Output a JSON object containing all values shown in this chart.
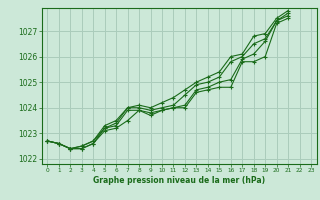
{
  "xlabel": "Graphe pression niveau de la mer (hPa)",
  "ylim": [
    1021.8,
    1027.9
  ],
  "xlim": [
    -0.5,
    23.5
  ],
  "yticks": [
    1022,
    1023,
    1024,
    1025,
    1026,
    1027
  ],
  "xticks": [
    0,
    1,
    2,
    3,
    4,
    5,
    6,
    7,
    8,
    9,
    10,
    11,
    12,
    13,
    14,
    15,
    16,
    17,
    18,
    19,
    20,
    21,
    22,
    23
  ],
  "bg_color": "#cce8d8",
  "grid_color": "#aaccbb",
  "line_color": "#1a6b1a",
  "series": [
    [
      1022.7,
      1022.6,
      1022.4,
      1022.4,
      1022.6,
      1023.1,
      1023.2,
      1023.5,
      1023.9,
      1023.7,
      1023.9,
      1024.0,
      1024.0,
      1024.6,
      1024.7,
      1024.8,
      1024.8,
      1025.8,
      1025.8,
      1026.0,
      1027.3,
      1027.5,
      null,
      null
    ],
    [
      1022.7,
      1022.6,
      1022.4,
      1022.4,
      1022.6,
      1023.2,
      1023.3,
      1023.9,
      1023.9,
      1023.8,
      1023.9,
      1024.0,
      1024.1,
      1024.7,
      1024.8,
      1025.0,
      1025.1,
      1025.9,
      1026.1,
      1026.6,
      1027.4,
      1027.6,
      null,
      null
    ],
    [
      1022.7,
      1022.6,
      1022.4,
      1022.5,
      1022.7,
      1023.2,
      1023.4,
      1024.0,
      1024.0,
      1023.9,
      1024.0,
      1024.1,
      1024.5,
      1024.9,
      1025.0,
      1025.2,
      1025.8,
      1026.0,
      1026.5,
      1026.7,
      1027.4,
      1027.7,
      null,
      null
    ],
    [
      1022.7,
      1022.6,
      1022.4,
      1022.5,
      1022.7,
      1023.3,
      1023.5,
      1024.0,
      1024.1,
      1024.0,
      1024.2,
      1024.4,
      1024.7,
      1025.0,
      1025.2,
      1025.4,
      1026.0,
      1026.1,
      1026.8,
      1026.9,
      1027.5,
      1027.8,
      null,
      null
    ]
  ]
}
